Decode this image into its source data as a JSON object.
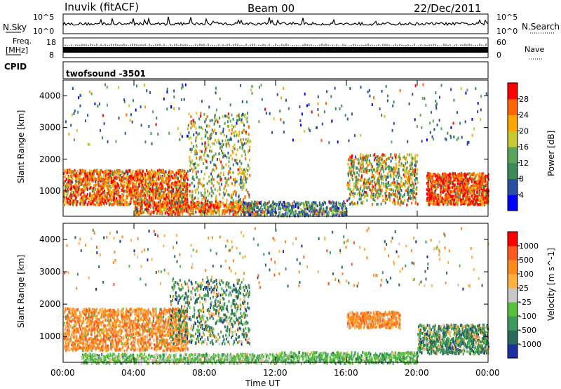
{
  "header": {
    "station": "Inuvik (fitACF)",
    "beam": "Beam 00",
    "date": "22/Dec/2011"
  },
  "sky_panel": {
    "left_label": "N.Sky",
    "right_label": "N.Search",
    "left_ticks": [
      "10^5",
      "10^0"
    ],
    "right_ticks": [
      "10^5",
      "10^0"
    ]
  },
  "freq_panel": {
    "left_label_line1": "Freq.",
    "left_label_line2": "[MHz]",
    "left_ticks": [
      "18",
      "8"
    ],
    "right_label": "Nave",
    "right_ticks": [
      "60",
      "0"
    ]
  },
  "cpid_panel": {
    "label": "CPID",
    "program": "twofsound -3501"
  },
  "colors": {
    "power_scale": [
      "#0000ff",
      "#2a4fa0",
      "#3c8a5a",
      "#5aa55a",
      "#c8c832",
      "#ffa500",
      "#ff6600",
      "#ff0000"
    ],
    "velocity_scale": [
      "#1a2fa0",
      "#2a6a5a",
      "#3c9a5a",
      "#55c23a",
      "#c8c8c8",
      "#ffb040",
      "#ff8a1e",
      "#ff5a1e",
      "#ff0000"
    ]
  },
  "chart_data": [
    {
      "type": "heatmap",
      "ylabel": "Slant Range [km]",
      "x_ticks": [
        "00:00",
        "04:00",
        "08:00",
        "12:00",
        "16:00",
        "20:00",
        "00:00"
      ],
      "y_ticks": [
        1000,
        2000,
        3000,
        4000
      ],
      "ylim": [
        200,
        4500
      ],
      "colorbar_label": "Power [dB]",
      "colorbar_ticks": [
        "28",
        "24",
        "20",
        "16",
        "12",
        "8",
        "4"
      ]
    },
    {
      "type": "heatmap",
      "ylabel": "Slant Range [km]",
      "xlabel": "Time UT",
      "x_ticks": [
        "00:00",
        "04:00",
        "08:00",
        "12:00",
        "16:00",
        "20:00",
        "00:00"
      ],
      "y_ticks": [
        1000,
        2000,
        3000,
        4000
      ],
      "ylim": [
        200,
        4500
      ],
      "colorbar_label": "Velocity [m s^-1]",
      "colorbar_ticks": [
        "1000",
        "500",
        "100",
        "25",
        "-25",
        "-100",
        "-500",
        "-1000"
      ]
    }
  ]
}
